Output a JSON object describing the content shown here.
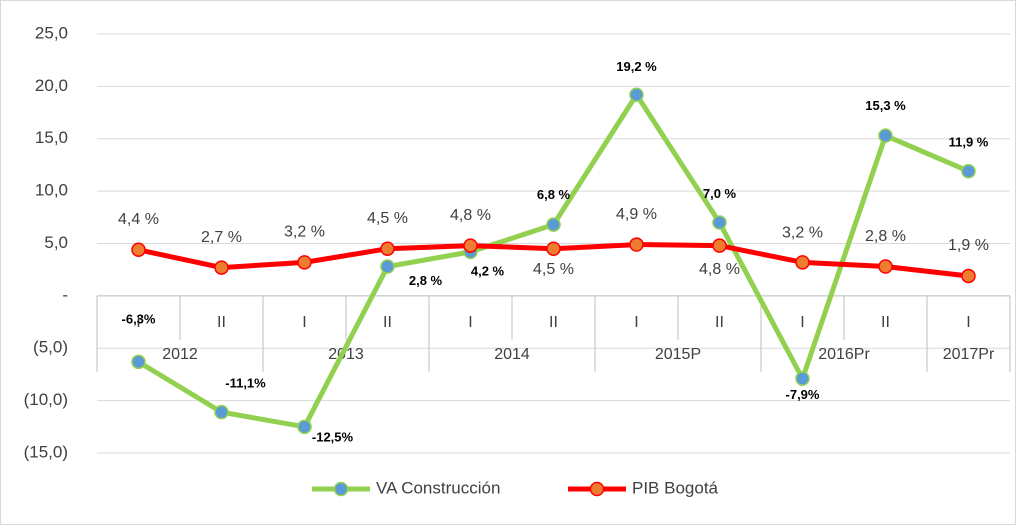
{
  "chart_data": {
    "type": "line",
    "categories": [
      "I",
      "II",
      "I",
      "II",
      "I",
      "II",
      "I",
      "II",
      "I",
      "II",
      "I"
    ],
    "category_groups": [
      "2012",
      "2012",
      "2013",
      "2013",
      "2014",
      "2014",
      "2015P",
      "2015P",
      "2016Pr",
      "2016Pr",
      "2017Pr"
    ],
    "series": [
      {
        "name": "VA Construcción",
        "color": "#92d050",
        "marker_color": "#5b9bd5",
        "values": [
          -6.3,
          -11.1,
          -12.5,
          2.8,
          4.2,
          6.8,
          19.2,
          7.0,
          -7.9,
          15.3,
          11.9
        ],
        "value_labels": [
          "-6,3%",
          "-11,1%",
          "-12,5%",
          "2,8 %",
          "4,2 %",
          "6,8 %",
          "19,2 %",
          "7,0 %",
          "-7,9%",
          "15,3 %",
          "11,9 %"
        ]
      },
      {
        "name": "PIB Bogotá",
        "color": "#ff0000",
        "marker_color": "#ed7d31",
        "values": [
          4.4,
          2.7,
          3.2,
          4.5,
          4.8,
          4.5,
          4.9,
          4.8,
          3.2,
          2.8,
          1.9
        ],
        "value_labels": [
          "4,4 %",
          "2,7 %",
          "3,2 %",
          "4,5 %",
          "4,8 %",
          "4,5 %",
          "4,9 %",
          "4,8 %",
          "3,2 %",
          "2,8 %",
          "1,9 %"
        ]
      }
    ],
    "ylim": [
      -15,
      25
    ],
    "yticks": [
      {
        "value": -15,
        "label": "(15,0)"
      },
      {
        "value": -10,
        "label": "(10,0)"
      },
      {
        "value": -5,
        "label": "(5,0)"
      },
      {
        "value": 0,
        "label": "-"
      },
      {
        "value": 5,
        "label": "5,0"
      },
      {
        "value": 10,
        "label": "10,0"
      },
      {
        "value": 15,
        "label": "15,0"
      },
      {
        "value": 20,
        "label": "20,0"
      },
      {
        "value": 25,
        "label": "25,0"
      }
    ],
    "grid": true,
    "legend": "bottom"
  }
}
